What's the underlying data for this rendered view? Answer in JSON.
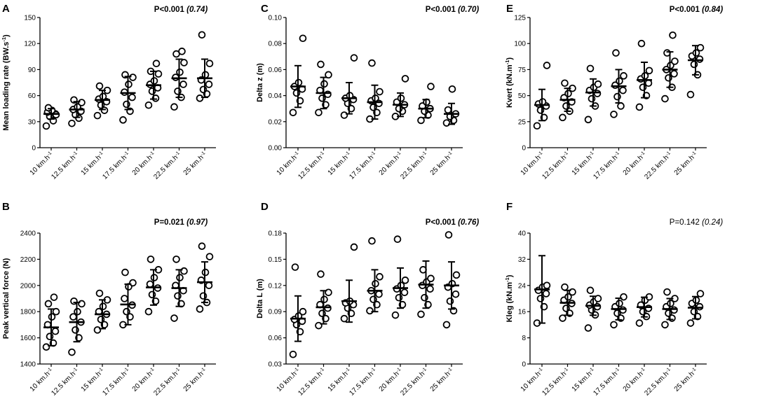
{
  "colors": {
    "ink": "#000000",
    "background": "#ffffff",
    "marker_fill": "#ffffff"
  },
  "chart_data": [
    {
      "panel": "A",
      "type": "scatter",
      "p_text": "P<0.001",
      "effect_text": "(0.74)",
      "p_bold": true,
      "ylabel_main": "Mean loading rate (BW.s",
      "ylabel_sup": "-1",
      "ylabel_tail": ")",
      "ylim": [
        0,
        150
      ],
      "yticks": [
        "0",
        "30",
        "60",
        "90",
        "120",
        "150"
      ],
      "categories": [
        {
          "base": "10 km.h",
          "sup": "-1"
        },
        {
          "base": "12.5 km.h",
          "sup": "-1"
        },
        {
          "base": "15 km.h",
          "sup": "-1"
        },
        {
          "base": "17.5 km.h",
          "sup": "-1"
        },
        {
          "base": "20 km.h",
          "sup": "-1"
        },
        {
          "base": "22.5 km.h",
          "sup": "-1"
        },
        {
          "base": "25 km.h",
          "sup": "-1"
        }
      ],
      "groups": [
        {
          "mean": 39,
          "sd": 6,
          "points": [
            25,
            31,
            36,
            39,
            41,
            43,
            38,
            46
          ]
        },
        {
          "mean": 44,
          "sd": 9,
          "points": [
            28,
            34,
            38,
            42,
            44,
            47,
            52,
            55
          ]
        },
        {
          "mean": 55,
          "sd": 11,
          "points": [
            37,
            43,
            49,
            53,
            56,
            59,
            66,
            71
          ]
        },
        {
          "mean": 63,
          "sd": 19,
          "points": [
            32,
            42,
            50,
            58,
            64,
            73,
            81,
            84
          ]
        },
        {
          "mean": 72,
          "sd": 16,
          "points": [
            49,
            57,
            65,
            69,
            73,
            77,
            85,
            88,
            97
          ]
        },
        {
          "mean": 80,
          "sd": 22,
          "points": [
            47,
            58,
            65,
            73,
            81,
            87,
            98,
            108,
            111
          ]
        },
        {
          "mean": 80,
          "sd": 22,
          "points": [
            57,
            62,
            67,
            73,
            78,
            84,
            97,
            130
          ]
        }
      ]
    },
    {
      "panel": "C",
      "type": "scatter",
      "p_text": "P<0.001",
      "effect_text": "(0.70)",
      "p_bold": true,
      "ylabel_main": "Delta z (m)",
      "ylabel_sup": "",
      "ylabel_tail": "",
      "ylim": [
        0,
        0.1
      ],
      "yticks": [
        "0.00",
        "0.02",
        "0.04",
        "0.06",
        "0.08",
        "0.10"
      ],
      "categories": [
        {
          "base": "10 km.h",
          "sup": "-1"
        },
        {
          "base": "12.5 km.h",
          "sup": "-1"
        },
        {
          "base": "15 km.h",
          "sup": "-1"
        },
        {
          "base": "17.5 km.h",
          "sup": "-1"
        },
        {
          "base": "20 km.h",
          "sup": "-1"
        },
        {
          "base": "22.5 km.h",
          "sup": "-1"
        },
        {
          "base": "25 km.h",
          "sup": "-1"
        }
      ],
      "groups": [
        {
          "mean": 0.047,
          "sd": 0.016,
          "points": [
            0.027,
            0.036,
            0.042,
            0.045,
            0.047,
            0.05,
            0.084
          ]
        },
        {
          "mean": 0.042,
          "sd": 0.012,
          "points": [
            0.027,
            0.033,
            0.038,
            0.041,
            0.044,
            0.049,
            0.056,
            0.064
          ]
        },
        {
          "mean": 0.038,
          "sd": 0.012,
          "points": [
            0.025,
            0.03,
            0.034,
            0.037,
            0.038,
            0.04,
            0.069
          ]
        },
        {
          "mean": 0.035,
          "sd": 0.013,
          "points": [
            0.022,
            0.027,
            0.031,
            0.034,
            0.036,
            0.038,
            0.043,
            0.065
          ]
        },
        {
          "mean": 0.033,
          "sd": 0.009,
          "points": [
            0.024,
            0.028,
            0.03,
            0.033,
            0.035,
            0.038,
            0.053
          ]
        },
        {
          "mean": 0.03,
          "sd": 0.007,
          "points": [
            0.021,
            0.025,
            0.028,
            0.03,
            0.032,
            0.035,
            0.047
          ]
        },
        {
          "mean": 0.026,
          "sd": 0.008,
          "points": [
            0.019,
            0.021,
            0.024,
            0.026,
            0.029,
            0.045
          ]
        }
      ]
    },
    {
      "panel": "E",
      "type": "scatter",
      "p_text": "P<0.001",
      "effect_text": "(0.84)",
      "p_bold": true,
      "ylabel_main": "Kvert (kN.m",
      "ylabel_sup": "-1",
      "ylabel_tail": ")",
      "ylim": [
        0,
        125
      ],
      "yticks": [
        "0",
        "25",
        "50",
        "75",
        "100",
        "125"
      ],
      "categories": [
        {
          "base": "10 km.h",
          "sup": "-1"
        },
        {
          "base": "12.5 km.h",
          "sup": "-1"
        },
        {
          "base": "15 km.h",
          "sup": "-1"
        },
        {
          "base": "17.5 km.h",
          "sup": "-1"
        },
        {
          "base": "20 km.h",
          "sup": "-1"
        },
        {
          "base": "22.5 km.h",
          "sup": "-1"
        },
        {
          "base": "25 km.h",
          "sup": "-1"
        }
      ],
      "groups": [
        {
          "mean": 41,
          "sd": 15,
          "points": [
            21,
            29,
            36,
            40,
            42,
            44,
            79
          ]
        },
        {
          "mean": 46,
          "sd": 11,
          "points": [
            29,
            35,
            40,
            44,
            48,
            52,
            57,
            62
          ]
        },
        {
          "mean": 53,
          "sd": 13,
          "points": [
            27,
            40,
            47,
            52,
            55,
            58,
            61,
            76
          ]
        },
        {
          "mean": 59,
          "sd": 16,
          "points": [
            32,
            40,
            49,
            55,
            60,
            64,
            69,
            91
          ]
        },
        {
          "mean": 65,
          "sd": 17,
          "points": [
            39,
            50,
            58,
            62,
            66,
            69,
            74,
            100
          ]
        },
        {
          "mean": 75,
          "sd": 17,
          "points": [
            47,
            58,
            67,
            71,
            75,
            79,
            83,
            91,
            108
          ]
        },
        {
          "mean": 84,
          "sd": 14,
          "points": [
            51,
            70,
            80,
            85,
            88,
            91,
            96
          ]
        }
      ]
    },
    {
      "panel": "B",
      "type": "scatter",
      "p_text": "P=0.021",
      "effect_text": "(0.97)",
      "p_bold": true,
      "ylabel_main": "Peak vertical force (N)",
      "ylabel_sup": "",
      "ylabel_tail": "",
      "ylim": [
        1400,
        2400
      ],
      "yticks": [
        "1400",
        "1600",
        "1800",
        "2000",
        "2200",
        "2400"
      ],
      "categories": [
        {
          "base": "10 km.h",
          "sup": "-1"
        },
        {
          "base": "12.5 km.h",
          "sup": "-1"
        },
        {
          "base": "15 km.h",
          "sup": "-1"
        },
        {
          "base": "17.5 km.h",
          "sup": "-1"
        },
        {
          "base": "20 km.h",
          "sup": "-1"
        },
        {
          "base": "22.5 km.h",
          "sup": "-1"
        },
        {
          "base": "25 km.h",
          "sup": "-1"
        }
      ],
      "groups": [
        {
          "mean": 1680,
          "sd": 140,
          "points": [
            1530,
            1560,
            1610,
            1650,
            1700,
            1760,
            1800,
            1860,
            1910
          ]
        },
        {
          "mean": 1720,
          "sd": 150,
          "points": [
            1490,
            1600,
            1660,
            1720,
            1760,
            1800,
            1860,
            1880
          ]
        },
        {
          "mean": 1780,
          "sd": 110,
          "points": [
            1660,
            1700,
            1740,
            1780,
            1800,
            1840,
            1890,
            1940
          ]
        },
        {
          "mean": 1855,
          "sd": 155,
          "points": [
            1700,
            1760,
            1800,
            1850,
            1900,
            1990,
            2020,
            2100
          ]
        },
        {
          "mean": 1985,
          "sd": 135,
          "points": [
            1800,
            1880,
            1930,
            1980,
            2010,
            2060,
            2120,
            2200
          ]
        },
        {
          "mean": 1980,
          "sd": 140,
          "points": [
            1750,
            1860,
            1920,
            1960,
            2000,
            2060,
            2110,
            2200
          ]
        },
        {
          "mean": 2025,
          "sd": 155,
          "points": [
            1820,
            1870,
            1920,
            2000,
            2040,
            2100,
            2220,
            2300
          ]
        }
      ]
    },
    {
      "panel": "D",
      "type": "scatter",
      "p_text": "P<0.001",
      "effect_text": "(0.76)",
      "p_bold": true,
      "ylabel_main": "Delta L (m)",
      "ylabel_sup": "",
      "ylabel_tail": "",
      "ylim": [
        0.03,
        0.18
      ],
      "yticks": [
        "0.03",
        "0.06",
        "0.09",
        "0.12",
        "0.15",
        "0.18"
      ],
      "categories": [
        {
          "base": "10 km.h",
          "sup": "-1"
        },
        {
          "base": "12.5 km.h",
          "sup": "-1"
        },
        {
          "base": "15 km.h",
          "sup": "-1"
        },
        {
          "base": "17.5 km.h",
          "sup": "-1"
        },
        {
          "base": "20 km.h",
          "sup": "-1"
        },
        {
          "base": "22.5 km.h",
          "sup": "-1"
        },
        {
          "base": "25 km.h",
          "sup": "-1"
        }
      ],
      "groups": [
        {
          "mean": 0.082,
          "sd": 0.026,
          "points": [
            0.041,
            0.067,
            0.075,
            0.079,
            0.081,
            0.085,
            0.09,
            0.141
          ]
        },
        {
          "mean": 0.095,
          "sd": 0.019,
          "points": [
            0.074,
            0.082,
            0.088,
            0.094,
            0.098,
            0.104,
            0.112,
            0.133
          ]
        },
        {
          "mean": 0.102,
          "sd": 0.024,
          "points": [
            0.082,
            0.088,
            0.094,
            0.098,
            0.1,
            0.102,
            0.164
          ]
        },
        {
          "mean": 0.114,
          "sd": 0.024,
          "points": [
            0.091,
            0.098,
            0.104,
            0.11,
            0.114,
            0.122,
            0.13,
            0.171
          ]
        },
        {
          "mean": 0.117,
          "sd": 0.023,
          "points": [
            0.086,
            0.098,
            0.106,
            0.112,
            0.116,
            0.12,
            0.126,
            0.173
          ]
        },
        {
          "mean": 0.121,
          "sd": 0.027,
          "points": [
            0.087,
            0.098,
            0.106,
            0.116,
            0.12,
            0.124,
            0.128,
            0.138
          ]
        },
        {
          "mean": 0.12,
          "sd": 0.027,
          "points": [
            0.075,
            0.091,
            0.102,
            0.11,
            0.118,
            0.122,
            0.132,
            0.178
          ]
        }
      ]
    },
    {
      "panel": "F",
      "type": "scatter",
      "p_text": "P=0.142",
      "effect_text": "(0.24)",
      "p_bold": false,
      "ylabel_main": "Kleg (kN.m",
      "ylabel_sup": "-1",
      "ylabel_tail": ")",
      "ylim": [
        0,
        40
      ],
      "yticks": [
        "0",
        "8",
        "16",
        "24",
        "32",
        "40"
      ],
      "categories": [
        {
          "base": "10 km.h",
          "sup": "-1"
        },
        {
          "base": "12.5 km.h",
          "sup": "-1"
        },
        {
          "base": "15 km.h",
          "sup": "-1"
        },
        {
          "base": "17.5 km.h",
          "sup": "-1"
        },
        {
          "base": "20 km.h",
          "sup": "-1"
        },
        {
          "base": "22.5 km.h",
          "sup": "-1"
        },
        {
          "base": "25 km.h",
          "sup": "-1"
        }
      ],
      "groups": [
        {
          "mean": 22.8,
          "sd": 10.3,
          "points": [
            12.5,
            17.5,
            20,
            21.5,
            22.5,
            23.5,
            24
          ]
        },
        {
          "mean": 18.7,
          "sd": 3.8,
          "points": [
            14,
            15.5,
            17,
            18.5,
            19.5,
            20.5,
            22,
            23.5
          ]
        },
        {
          "mean": 17.8,
          "sd": 2.9,
          "points": [
            11,
            15,
            16.5,
            17.5,
            18,
            19,
            20,
            22.5
          ]
        },
        {
          "mean": 16.8,
          "sd": 3.3,
          "points": [
            12,
            14,
            15.5,
            16.5,
            17.5,
            18.5,
            20.5
          ]
        },
        {
          "mean": 17.4,
          "sd": 3.0,
          "points": [
            12.5,
            14.5,
            16,
            17,
            18,
            19.5,
            20.5
          ]
        },
        {
          "mean": 16.8,
          "sd": 3.2,
          "points": [
            12,
            14,
            15.5,
            16.5,
            17.5,
            18.5,
            20,
            22
          ]
        },
        {
          "mean": 17.2,
          "sd": 3.4,
          "points": [
            12.5,
            14.5,
            16,
            17.5,
            18.5,
            19.5,
            21.5
          ]
        }
      ]
    }
  ]
}
